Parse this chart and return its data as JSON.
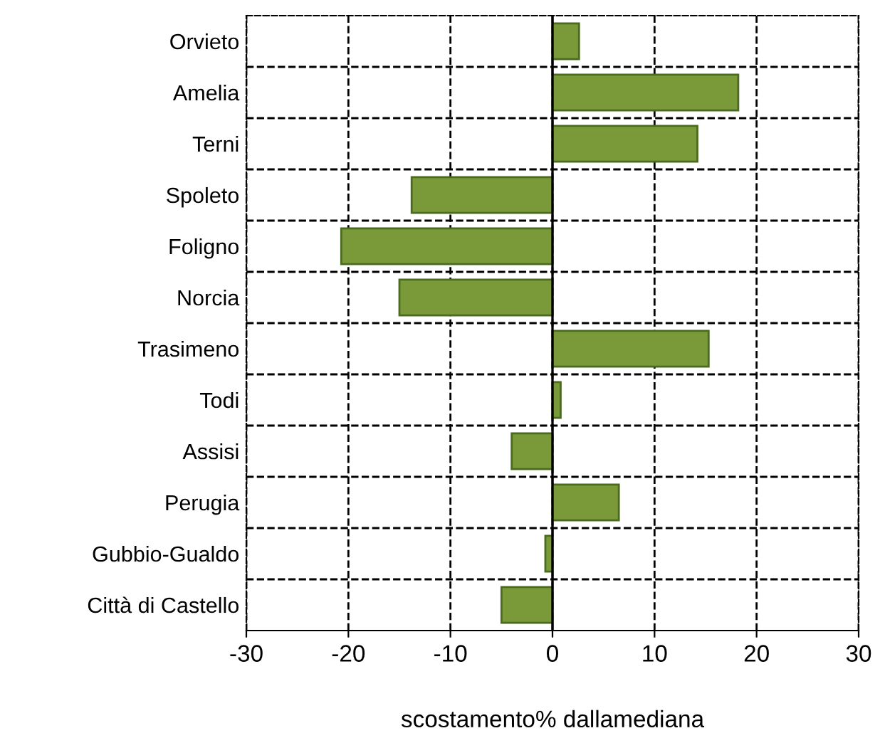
{
  "chart_data": {
    "type": "bar",
    "orientation": "horizontal",
    "xlabel": "scostamento% dallamediana",
    "categories": [
      "Orvieto",
      "Amelia",
      "Terni",
      "Spoleto",
      "Foligno",
      "Norcia",
      "Trasimeno",
      "Todi",
      "Assisi",
      "Perugia",
      "Gubbio-Gualdo",
      "Città di Castello"
    ],
    "values": [
      2.6,
      18.2,
      14.2,
      -13.8,
      -20.7,
      -15.0,
      15.3,
      0.8,
      -4.0,
      6.5,
      -0.7,
      -5.0
    ],
    "color": "#7a9a3a",
    "xlim": [
      -30,
      30
    ],
    "xticks": [
      -30,
      -20,
      -10,
      0,
      10,
      20,
      30
    ],
    "grid": true
  }
}
